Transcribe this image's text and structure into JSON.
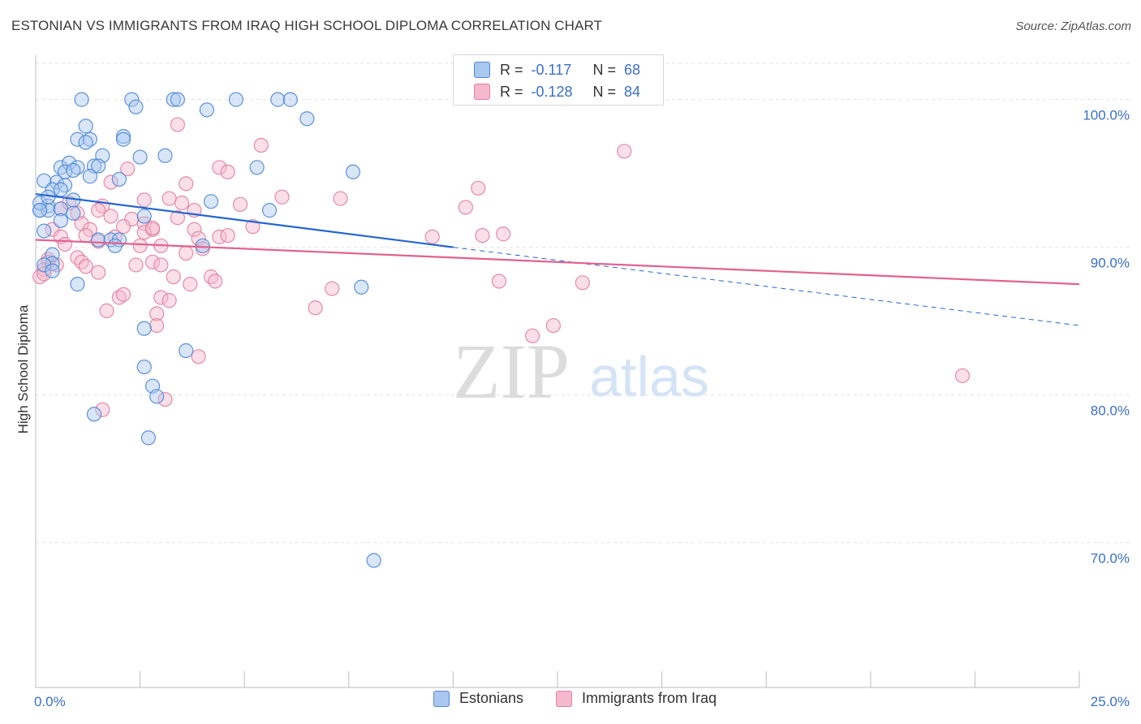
{
  "title": "ESTONIAN VS IMMIGRANTS FROM IRAQ HIGH SCHOOL DIPLOMA CORRELATION CHART",
  "source": "Source: ZipAtlas.com",
  "watermark": {
    "zip": "ZIP",
    "atlas": "atlas"
  },
  "stats": [
    {
      "r_label": "R =",
      "r_value": "-0.117",
      "n_label": "N =",
      "n_value": "68"
    },
    {
      "r_label": "R =",
      "r_value": "-0.128",
      "n_label": "N =",
      "n_value": "84"
    }
  ],
  "legend": {
    "estonians": "Estonians",
    "iraq": "Immigrants from Iraq"
  },
  "colors": {
    "estonians_fill": "#a9c8f0",
    "estonians_stroke": "#4f86d4",
    "estonians_line": "#2467cf",
    "iraq_fill": "#f6b8cc",
    "iraq_stroke": "#e07fa0",
    "iraq_line": "#e0628e",
    "axis_label": "#3a6fc4",
    "grid": "#e2e2e2"
  },
  "chart_data": {
    "type": "scatter",
    "title": "ESTONIAN VS IMMIGRANTS FROM IRAQ HIGH SCHOOL DIPLOMA CORRELATION CHART",
    "xlabel": "",
    "ylabel": "High School Diploma",
    "xlim": [
      0,
      25
    ],
    "ylim": [
      60.2,
      103
    ],
    "x_tick_labels": [
      "0.0%",
      "25.0%"
    ],
    "y_ticks": [
      70,
      80,
      90,
      100
    ],
    "y_tick_labels": [
      "70.0%",
      "80.0%",
      "90.0%",
      "100.0%"
    ],
    "grid": true,
    "legend_position": "bottom-center",
    "series": [
      {
        "name": "Estonians",
        "R": -0.117,
        "N": 68,
        "trend": {
          "x": [
            0,
            10
          ],
          "y": [
            93.6,
            90.0
          ],
          "dashed_to": [
            25,
            84.7
          ]
        },
        "points": [
          [
            1.1,
            100
          ],
          [
            2.3,
            100
          ],
          [
            2.4,
            99.5
          ],
          [
            3.3,
            100
          ],
          [
            3.4,
            100
          ],
          [
            4.1,
            99.3
          ],
          [
            4.8,
            100
          ],
          [
            5.8,
            100
          ],
          [
            6.1,
            100
          ],
          [
            6.5,
            98.7
          ],
          [
            1.2,
            98.2
          ],
          [
            1.0,
            97.3
          ],
          [
            1.3,
            97.3
          ],
          [
            1.2,
            97.1
          ],
          [
            2.1,
            97.5
          ],
          [
            2.1,
            97.3
          ],
          [
            1.6,
            96.2
          ],
          [
            2.5,
            96.1
          ],
          [
            3.1,
            96.2
          ],
          [
            0.6,
            95.4
          ],
          [
            0.8,
            95.7
          ],
          [
            1.0,
            95.4
          ],
          [
            1.4,
            95.5
          ],
          [
            1.5,
            95.5
          ],
          [
            0.7,
            95.1
          ],
          [
            0.5,
            94.4
          ],
          [
            0.7,
            94.2
          ],
          [
            0.2,
            94.5
          ],
          [
            0.4,
            93.9
          ],
          [
            0.6,
            93.9
          ],
          [
            0.9,
            93.2
          ],
          [
            0.3,
            92.8
          ],
          [
            0.1,
            92.5
          ],
          [
            0.3,
            92.5
          ],
          [
            0.6,
            92.6
          ],
          [
            0.9,
            92.3
          ],
          [
            2.0,
            94.6
          ],
          [
            5.3,
            95.4
          ],
          [
            7.6,
            95.1
          ],
          [
            4.2,
            93.1
          ],
          [
            5.6,
            92.5
          ],
          [
            2.6,
            92.1
          ],
          [
            0.6,
            91.8
          ],
          [
            0.2,
            91.1
          ],
          [
            1.5,
            90.5
          ],
          [
            1.8,
            90.5
          ],
          [
            2.0,
            90.5
          ],
          [
            1.9,
            90.1
          ],
          [
            4.0,
            90.1
          ],
          [
            0.4,
            89.5
          ],
          [
            0.4,
            88.9
          ],
          [
            0.2,
            88.8
          ],
          [
            0.4,
            88.4
          ],
          [
            1.0,
            87.5
          ],
          [
            7.8,
            87.3
          ],
          [
            2.6,
            84.5
          ],
          [
            3.6,
            83.0
          ],
          [
            2.6,
            81.9
          ],
          [
            2.8,
            80.6
          ],
          [
            2.9,
            79.9
          ],
          [
            1.4,
            78.7
          ],
          [
            2.7,
            77.1
          ],
          [
            8.1,
            68.8
          ],
          [
            0.1,
            93.0
          ],
          [
            1.3,
            94.8
          ],
          [
            0.9,
            95.2
          ],
          [
            0.3,
            93.4
          ],
          [
            0.1,
            92.5
          ]
        ]
      },
      {
        "name": "Immigrants from Iraq",
        "R": -0.128,
        "N": 84,
        "trend": {
          "x": [
            0,
            25
          ],
          "y": [
            90.5,
            87.5
          ]
        },
        "points": [
          [
            14.1,
            96.5
          ],
          [
            3.4,
            98.3
          ],
          [
            5.4,
            96.9
          ],
          [
            4.4,
            95.4
          ],
          [
            4.6,
            95.1
          ],
          [
            2.2,
            95.3
          ],
          [
            1.8,
            94.4
          ],
          [
            3.6,
            94.3
          ],
          [
            10.6,
            94.0
          ],
          [
            2.6,
            93.2
          ],
          [
            3.2,
            93.3
          ],
          [
            3.5,
            93.0
          ],
          [
            4.9,
            92.9
          ],
          [
            5.9,
            93.4
          ],
          [
            7.3,
            93.3
          ],
          [
            10.3,
            92.7
          ],
          [
            1.6,
            92.8
          ],
          [
            1.0,
            92.3
          ],
          [
            1.5,
            92.5
          ],
          [
            0.6,
            92.6
          ],
          [
            3.4,
            92.0
          ],
          [
            2.3,
            91.9
          ],
          [
            1.1,
            91.6
          ],
          [
            0.4,
            91.2
          ],
          [
            1.3,
            91.2
          ],
          [
            2.1,
            91.4
          ],
          [
            2.6,
            91.6
          ],
          [
            2.8,
            91.2
          ],
          [
            3.8,
            91.2
          ],
          [
            5.2,
            91.4
          ],
          [
            0.6,
            90.7
          ],
          [
            1.2,
            90.8
          ],
          [
            1.9,
            90.7
          ],
          [
            2.6,
            91.0
          ],
          [
            3.9,
            90.6
          ],
          [
            4.4,
            90.7
          ],
          [
            4.6,
            90.8
          ],
          [
            9.5,
            90.7
          ],
          [
            10.7,
            90.8
          ],
          [
            0.7,
            90.2
          ],
          [
            1.5,
            90.4
          ],
          [
            2.5,
            90.1
          ],
          [
            3.0,
            90.1
          ],
          [
            3.6,
            89.6
          ],
          [
            4.0,
            89.9
          ],
          [
            0.3,
            89.2
          ],
          [
            1.0,
            89.3
          ],
          [
            1.1,
            89.0
          ],
          [
            0.3,
            89.0
          ],
          [
            0.5,
            88.8
          ],
          [
            0.2,
            88.5
          ],
          [
            1.2,
            88.7
          ],
          [
            2.4,
            88.8
          ],
          [
            2.8,
            89.0
          ],
          [
            3.0,
            88.8
          ],
          [
            0.1,
            88.0
          ],
          [
            1.5,
            88.3
          ],
          [
            3.3,
            88.0
          ],
          [
            4.2,
            88.0
          ],
          [
            3.7,
            87.5
          ],
          [
            4.3,
            87.7
          ],
          [
            7.1,
            87.2
          ],
          [
            11.1,
            87.7
          ],
          [
            13.1,
            87.6
          ],
          [
            2.0,
            86.6
          ],
          [
            2.1,
            86.8
          ],
          [
            3.0,
            86.6
          ],
          [
            3.2,
            86.4
          ],
          [
            1.7,
            85.7
          ],
          [
            2.9,
            85.5
          ],
          [
            6.7,
            85.9
          ],
          [
            2.9,
            84.7
          ],
          [
            11.9,
            84.0
          ],
          [
            12.4,
            84.7
          ],
          [
            3.9,
            82.6
          ],
          [
            22.2,
            81.3
          ],
          [
            1.6,
            79.0
          ],
          [
            3.1,
            79.7
          ],
          [
            11.2,
            90.9
          ],
          [
            2.8,
            91.3
          ],
          [
            1.8,
            92.1
          ],
          [
            0.8,
            93.0
          ],
          [
            3.8,
            92.5
          ],
          [
            0.2,
            88.2
          ]
        ]
      }
    ]
  }
}
